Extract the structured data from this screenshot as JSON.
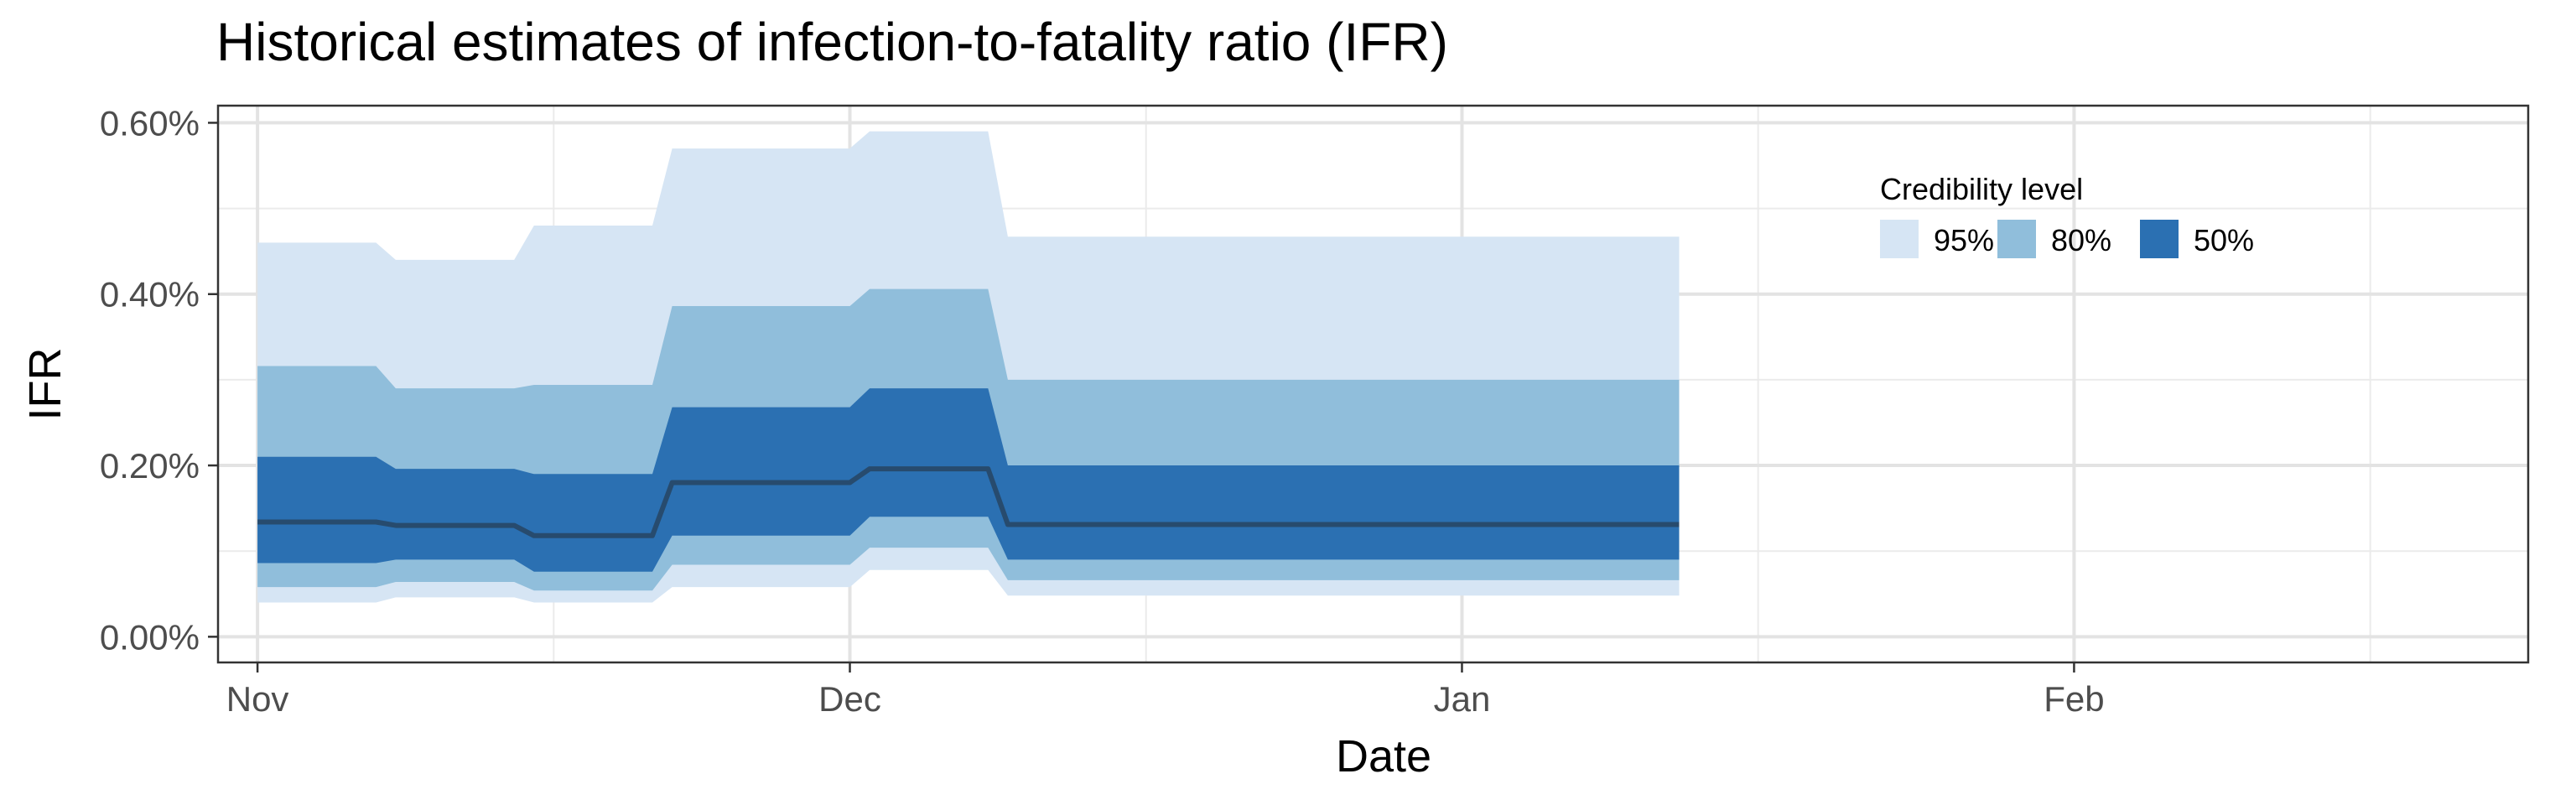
{
  "chart_data": {
    "type": "area",
    "title": "Historical estimates of infection-to-fatality ratio (IFR)",
    "xlabel": "Date",
    "ylabel": "IFR",
    "x_axis": {
      "min": "2020-10-30",
      "max": "2021-02-24",
      "ticks": [
        {
          "date": "2020-11-01",
          "label": "Nov"
        },
        {
          "date": "2020-12-01",
          "label": "Dec"
        },
        {
          "date": "2021-01-01",
          "label": "Jan"
        },
        {
          "date": "2021-02-01",
          "label": "Feb"
        }
      ],
      "minor_ticks": [
        "2020-11-16",
        "2020-12-16",
        "2021-01-16",
        "2021-02-16"
      ]
    },
    "y_axis": {
      "min": -0.0003,
      "max": 0.0062,
      "ticks": [
        {
          "value": 0.0,
          "label": "0.00%"
        },
        {
          "value": 0.002,
          "label": "0.20%"
        },
        {
          "value": 0.004,
          "label": "0.40%"
        },
        {
          "value": 0.006,
          "label": "0.60%"
        }
      ],
      "minor_ticks": [
        0.001,
        0.003,
        0.005
      ]
    },
    "grid": true,
    "legend": {
      "title": "Credibility level",
      "placement": "top-right",
      "items": [
        {
          "label": "95%",
          "color": "#d6e5f4"
        },
        {
          "label": "80%",
          "color": "#90bedb"
        },
        {
          "label": "50%",
          "color": "#2b70b2"
        }
      ]
    },
    "median_color": "#274b6e",
    "x": [
      "2020-11-01",
      "2020-11-07",
      "2020-11-08",
      "2020-11-14",
      "2020-11-15",
      "2020-11-21",
      "2020-11-22",
      "2020-11-28",
      "2020-11-29",
      "2020-12-01",
      "2020-12-02",
      "2020-12-08",
      "2020-12-09",
      "2021-01-12"
    ],
    "median": [
      0.00134,
      0.00134,
      0.0013,
      0.0013,
      0.00118,
      0.00118,
      0.0018,
      0.0018,
      0.0018,
      0.0018,
      0.00196,
      0.00196,
      0.00131,
      0.00131
    ],
    "bands": [
      {
        "level": "95%",
        "lower": [
          0.0004,
          0.0004,
          0.00046,
          0.00046,
          0.0004,
          0.0004,
          0.00058,
          0.00058,
          0.00058,
          0.00058,
          0.00078,
          0.00078,
          0.00048,
          0.00048
        ],
        "upper": [
          0.0046,
          0.0046,
          0.0044,
          0.0044,
          0.0048,
          0.0048,
          0.0057,
          0.0057,
          0.0057,
          0.0057,
          0.0059,
          0.0059,
          0.00467,
          0.00467
        ]
      },
      {
        "level": "80%",
        "lower": [
          0.00058,
          0.00058,
          0.00064,
          0.00064,
          0.00054,
          0.00054,
          0.00084,
          0.00084,
          0.00084,
          0.00084,
          0.00104,
          0.00104,
          0.00066,
          0.00066
        ],
        "upper": [
          0.00316,
          0.00316,
          0.0029,
          0.0029,
          0.00294,
          0.00294,
          0.00386,
          0.00386,
          0.00386,
          0.00386,
          0.00406,
          0.00406,
          0.003,
          0.003
        ]
      },
      {
        "level": "50%",
        "lower": [
          0.00086,
          0.00086,
          0.0009,
          0.0009,
          0.00076,
          0.00076,
          0.00118,
          0.00118,
          0.00118,
          0.00118,
          0.0014,
          0.0014,
          0.0009,
          0.0009
        ],
        "upper": [
          0.0021,
          0.0021,
          0.00196,
          0.00196,
          0.0019,
          0.0019,
          0.00268,
          0.00268,
          0.00268,
          0.00268,
          0.0029,
          0.0029,
          0.002,
          0.002
        ]
      }
    ]
  }
}
